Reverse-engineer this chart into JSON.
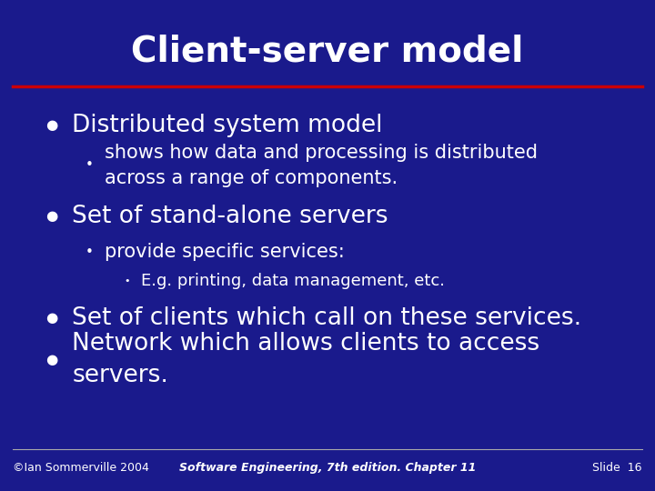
{
  "title": "Client-server model",
  "bg_color": "#1a1a8c",
  "title_color": "#ffffff",
  "title_fontsize": 28,
  "separator_color": "#cc0000",
  "text_color": "#ffffff",
  "bullet1_text": "Distributed system model",
  "bullet1_sub1": "shows how data and processing is distributed\nacross a range of components.",
  "bullet2_text": "Set of stand-alone servers",
  "bullet2_sub1": "provide specific services:",
  "bullet2_sub2": "E.g. printing, data management, etc.",
  "bullet3_text": "Set of clients which call on these services.",
  "bullet4_text": "Network which allows clients to access\nservers.",
  "footer_left": "©Ian Sommerville 2004",
  "footer_center": "Software Engineering, 7th edition. Chapter 11",
  "footer_right": "Slide  16",
  "footer_fontsize": 9,
  "main_bullet_fontsize": 19,
  "sub_bullet_fontsize": 15,
  "sub2_bullet_fontsize": 13
}
